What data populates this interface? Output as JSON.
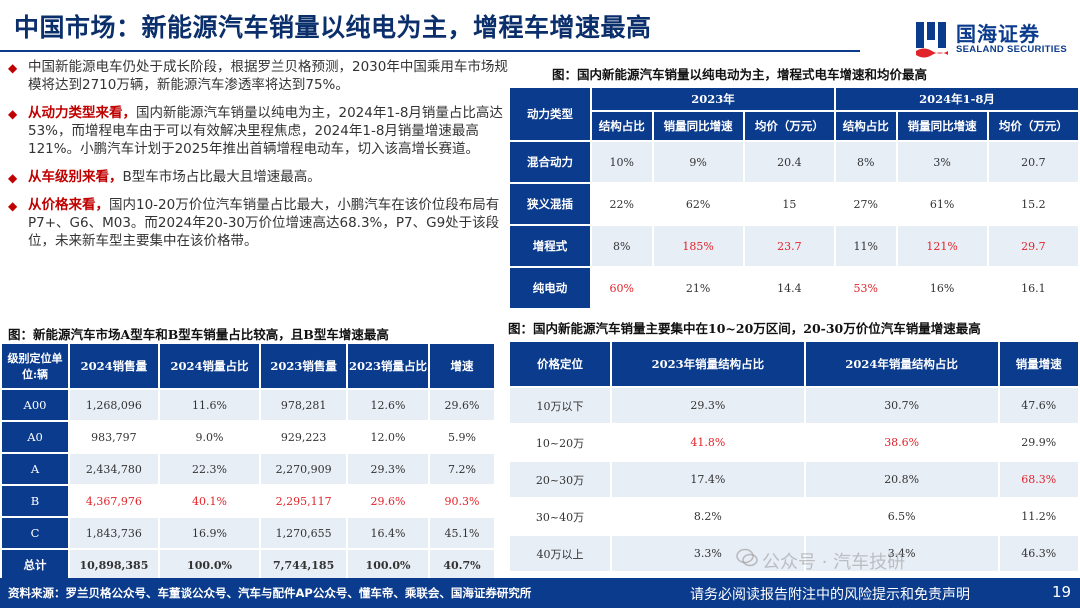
{
  "header": {
    "title": "中国市场：新能源汽车销量以纯电为主，增程车增速最高",
    "logo_cn": "国海证券",
    "logo_en": "SEALAND SECURITIES"
  },
  "bullets": [
    {
      "lead": "",
      "text": "中国新能源电车仍处于成长阶段，根据罗兰贝格预测，2030年中国乘用车市场规模将达到2710万辆，新能源汽车渗透率将达到75%。"
    },
    {
      "lead": "从动力类型来看，",
      "text": "国内新能源汽车销量以纯电为主，2024年1-8月销量占比高达53%，而增程电车由于可以有效解决里程焦虑，2024年1-8月销量增速最高121%。小鹏汽车计划于2025年推出首辆增程电动车，切入该高增长赛道。"
    },
    {
      "lead": "从车级别来看，",
      "text": "B型车市场占比最大且增速最高。"
    },
    {
      "lead": "从价格来看，",
      "text": "国内10-20万价位汽车销量占比最大，小鹏汽车在该价位段布局有P7+、G6、M03。而2024年20-30万价位增速高达68.3%，P7、G9处于该段位，未来新车型主要集中在该价格带。"
    }
  ],
  "table_power": {
    "caption": "图：国内新能源汽车销量以纯电动为主，增程式电车增速和均价最高",
    "corner": "动力类型",
    "group1": "2023年",
    "group2": "2024年1-8月",
    "subheaders": [
      "结构占比",
      "销量同比增速",
      "均价（万元）",
      "结构占比",
      "销量同比增速",
      "均价（万元）"
    ],
    "rows": [
      {
        "label": "混合动力",
        "cells": [
          "10%",
          "9%",
          "20.4",
          "8%",
          "3%",
          "20.7"
        ],
        "red": []
      },
      {
        "label": "狭义混插",
        "cells": [
          "22%",
          "62%",
          "15",
          "27%",
          "61%",
          "15.2"
        ],
        "red": []
      },
      {
        "label": "增程式",
        "cells": [
          "8%",
          "185%",
          "23.7",
          "11%",
          "121%",
          "29.7"
        ],
        "red": [
          1,
          2,
          4,
          5
        ]
      },
      {
        "label": "纯电动",
        "cells": [
          "60%",
          "21%",
          "14.4",
          "53%",
          "16%",
          "16.1"
        ],
        "red": [
          0,
          3
        ]
      }
    ]
  },
  "table_class": {
    "caption": "图：新能源汽车市场A型车和B型车销量占比较高，且B型车增速最高",
    "headers": [
      "级别定位单位:辆",
      "2024销售量",
      "2024销量占比",
      "2023销售量",
      "2023销量占比",
      "增速"
    ],
    "rows": [
      {
        "label": "A00",
        "cells": [
          "1,268,096",
          "11.6%",
          "978,281",
          "12.6%",
          "29.6%"
        ],
        "red": []
      },
      {
        "label": "A0",
        "cells": [
          "983,797",
          "9.0%",
          "929,223",
          "12.0%",
          "5.9%"
        ],
        "red": []
      },
      {
        "label": "A",
        "cells": [
          "2,434,780",
          "22.3%",
          "2,270,909",
          "29.3%",
          "7.2%"
        ],
        "red": []
      },
      {
        "label": "B",
        "cells": [
          "4,367,976",
          "40.1%",
          "2,295,117",
          "29.6%",
          "90.3%"
        ],
        "red": [
          0,
          1,
          2,
          3,
          4
        ]
      },
      {
        "label": "C",
        "cells": [
          "1,843,736",
          "16.9%",
          "1,270,655",
          "16.4%",
          "45.1%"
        ],
        "red": []
      },
      {
        "label": "总计",
        "cells": [
          "10,898,385",
          "100.0%",
          "7,744,185",
          "100.0%",
          "40.7%"
        ],
        "red": []
      }
    ]
  },
  "table_price": {
    "caption": "图：国内新能源汽车销量主要集中在10~20万区间，20-30万价位汽车销量增速最高",
    "headers": [
      "价格定位",
      "2023年销量结构占比",
      "2024年销量结构占比",
      "销量增速"
    ],
    "rows": [
      {
        "label": "10万以下",
        "cells": [
          "29.3%",
          "30.7%",
          "47.6%"
        ],
        "red": [],
        "labelRed": false
      },
      {
        "label": "10~20万",
        "cells": [
          "41.8%",
          "38.6%",
          "29.9%"
        ],
        "red": [
          0,
          1
        ],
        "labelRed": true
      },
      {
        "label": "20~30万",
        "cells": [
          "17.4%",
          "20.8%",
          "68.3%"
        ],
        "red": [
          2
        ],
        "labelRed": false
      },
      {
        "label": "30~40万",
        "cells": [
          "8.2%",
          "6.5%",
          "11.2%"
        ],
        "red": [],
        "labelRed": false
      },
      {
        "label": "40万以上",
        "cells": [
          "3.3%",
          "3.4%",
          "46.3%"
        ],
        "red": [],
        "labelRed": false
      }
    ]
  },
  "footer": {
    "source": "资料来源：罗兰贝格公众号、车董谈公众号、汽车与配件AP公众号、懂车帝、乘联会、国海证券研究所",
    "disclaimer": "请务必阅读报告附注中的风险提示和免责声明",
    "page": "19"
  },
  "watermark": "公众号 · 汽车技研",
  "colors": {
    "brand": "#0b3b8c",
    "accent_red": "#e0242a",
    "band": "#e8eef6"
  }
}
